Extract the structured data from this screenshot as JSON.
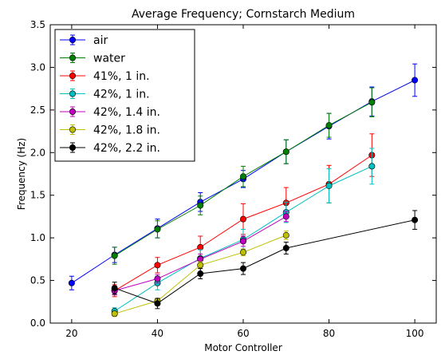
{
  "chart_data": {
    "type": "line",
    "title": "Average Frequency; Cornstarch Medium",
    "xlabel": "Motor Controller",
    "ylabel": "Frequency (Hz)",
    "xlim": [
      15,
      105
    ],
    "ylim": [
      0.0,
      3.5
    ],
    "xticks": [
      20,
      40,
      60,
      80,
      100
    ],
    "yticks": [
      0.0,
      0.5,
      1.0,
      1.5,
      2.0,
      2.5,
      3.0,
      3.5
    ],
    "ytick_labels": [
      "0.0",
      "0.5",
      "1.0",
      "1.5",
      "2.0",
      "2.5",
      "3.0",
      "3.5"
    ],
    "grid": false,
    "legend_position": "top-left",
    "series": [
      {
        "name": "air",
        "color": "#0000ff",
        "x": [
          20,
          30,
          40,
          50,
          60,
          70,
          80,
          90,
          100
        ],
        "y": [
          0.47,
          0.8,
          1.11,
          1.42,
          1.69,
          2.01,
          2.31,
          2.6,
          2.85
        ],
        "err": [
          0.08,
          0.09,
          0.11,
          0.11,
          0.1,
          0.14,
          0.15,
          0.17,
          0.19
        ]
      },
      {
        "name": "water",
        "color": "#008000",
        "x": [
          30,
          40,
          50,
          60,
          70,
          80,
          90
        ],
        "y": [
          0.79,
          1.1,
          1.38,
          1.72,
          2.01,
          2.32,
          2.59
        ],
        "err": [
          0.1,
          0.1,
          0.11,
          0.12,
          0.14,
          0.14,
          0.17
        ]
      },
      {
        "name": "41%, 1 in.",
        "color": "#ff0000",
        "x": [
          30,
          40,
          50,
          60,
          70,
          80,
          90
        ],
        "y": [
          0.38,
          0.68,
          0.89,
          1.22,
          1.41,
          1.63,
          1.97
        ],
        "err": [
          0.07,
          0.09,
          0.13,
          0.18,
          0.18,
          0.22,
          0.25
        ]
      },
      {
        "name": "42%, 1 in.",
        "color": "#00bfbf",
        "x": [
          30,
          40,
          50,
          60,
          70,
          80,
          90
        ],
        "y": [
          0.14,
          0.47,
          0.76,
          0.98,
          1.3,
          1.61,
          1.84
        ],
        "err": [
          0.04,
          0.08,
          0.1,
          0.12,
          0.12,
          0.2,
          0.21
        ]
      },
      {
        "name": "42%, 1.4 in.",
        "color": "#bf00bf",
        "x": [
          30,
          40,
          50,
          60,
          70
        ],
        "y": [
          0.38,
          0.52,
          0.75,
          0.96,
          1.25
        ],
        "err": [
          0.05,
          0.05,
          0.06,
          0.06,
          0.06
        ]
      },
      {
        "name": "42%, 1.8 in.",
        "color": "#bfbf00",
        "x": [
          30,
          40,
          50,
          60,
          70
        ],
        "y": [
          0.11,
          0.26,
          0.68,
          0.83,
          1.03
        ],
        "err": [
          0.03,
          0.03,
          0.04,
          0.04,
          0.05
        ]
      },
      {
        "name": "42%, 2.2 in.",
        "color": "#000000",
        "x": [
          30,
          40,
          50,
          60,
          70,
          100
        ],
        "y": [
          0.41,
          0.23,
          0.58,
          0.64,
          0.88,
          1.21
        ],
        "err": [
          0.07,
          0.06,
          0.06,
          0.07,
          0.07,
          0.11
        ]
      }
    ]
  }
}
